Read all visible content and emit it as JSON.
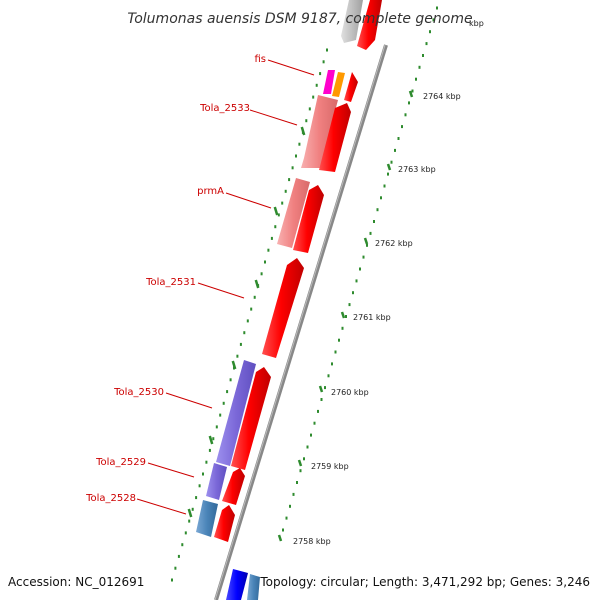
{
  "title": "Tolumonas auensis DSM 9187, complete genome",
  "accession": "Accession: NC_012691",
  "topology": "Topology: circular; Length: 3,471,292 bp; Genes: 3,246",
  "gene_labels": [
    {
      "key": "fis",
      "text": "fis"
    },
    {
      "key": "tola2533",
      "text": "Tola_2533"
    },
    {
      "key": "prmA",
      "text": "prmA"
    },
    {
      "key": "tola2531",
      "text": "Tola_2531"
    },
    {
      "key": "tola2530",
      "text": "Tola_2530"
    },
    {
      "key": "tola2529",
      "text": "Tola_2529"
    },
    {
      "key": "tola2528",
      "text": "Tola_2528"
    }
  ],
  "kbp_labels": [
    {
      "key": "k2765",
      "text": "kbp"
    },
    {
      "key": "k2764",
      "text": "2764 kbp"
    },
    {
      "key": "k2763",
      "text": "2763 kbp"
    },
    {
      "key": "k2762",
      "text": "2762 kbp"
    },
    {
      "key": "k2761",
      "text": "2761 kbp"
    },
    {
      "key": "k2760",
      "text": "2760 kbp"
    },
    {
      "key": "k2759",
      "text": "2759 kbp"
    },
    {
      "key": "k2758",
      "text": "2758 kbp"
    }
  ],
  "colors": {
    "forward_cds": "#ff0000",
    "reverse_pink": "#f08080",
    "reverse_purple": "#7b68d8",
    "reverse_steelblue": "#4a84b8",
    "reverse_blue": "#0000ff",
    "magenta": "#ff00cc",
    "orange": "#ff9900",
    "backbone": "#888888",
    "tick_green": "#2e8b2e",
    "gray_feature": "#c0c0c0",
    "label_red": "#cc0000"
  }
}
